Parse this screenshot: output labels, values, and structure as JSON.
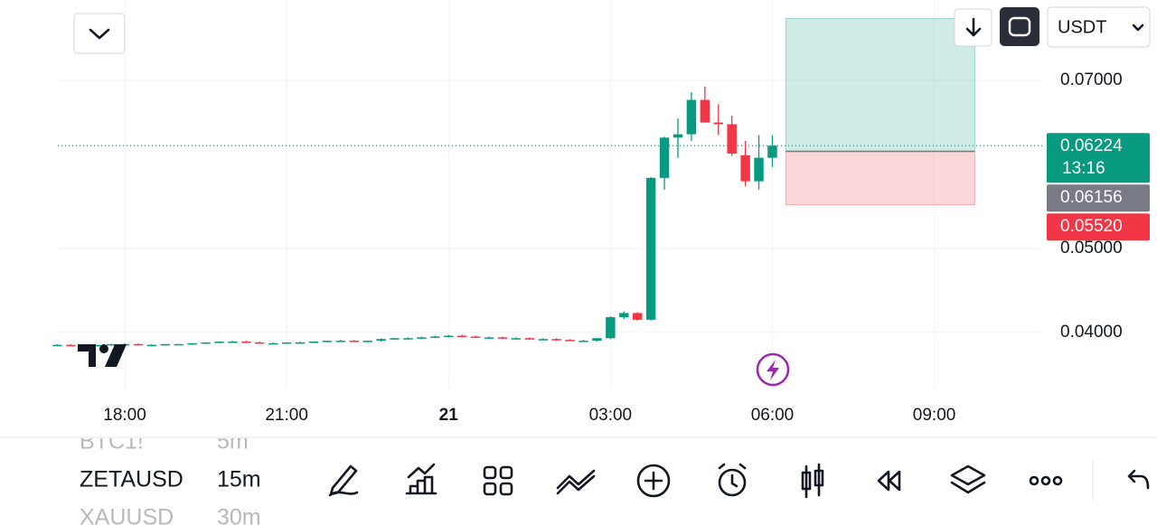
{
  "chart_data": {
    "type": "candlestick",
    "x": [
      16.75,
      17,
      17.25,
      17.5,
      17.75,
      18,
      18.25,
      18.5,
      18.75,
      19,
      19.25,
      19.5,
      19.75,
      20,
      20.25,
      20.5,
      20.75,
      21,
      21.25,
      21.5,
      21.75,
      22,
      22.25,
      22.5,
      22.75,
      23,
      23.25,
      23.5,
      23.75,
      24,
      24.25,
      24.5,
      24.75,
      25,
      25.25,
      25.5,
      25.75,
      26,
      26.25,
      26.5,
      26.75,
      27,
      27.25,
      27.5,
      27.75,
      28,
      28.25,
      28.5,
      28.75,
      29,
      29.25,
      29.5,
      29.75,
      30
    ],
    "open": [
      0.0385,
      0.0385,
      0.0384,
      0.0384,
      0.0385,
      0.0386,
      0.0386,
      0.0385,
      0.0385,
      0.0386,
      0.0386,
      0.0387,
      0.0388,
      0.0389,
      0.0389,
      0.0388,
      0.0387,
      0.0387,
      0.0388,
      0.0388,
      0.0389,
      0.039,
      0.039,
      0.0389,
      0.039,
      0.0392,
      0.0393,
      0.0393,
      0.0394,
      0.0395,
      0.0396,
      0.0395,
      0.0394,
      0.0394,
      0.0393,
      0.0393,
      0.0392,
      0.0392,
      0.0391,
      0.039,
      0.039,
      0.0393,
      0.0418,
      0.0423,
      0.0415,
      0.0584,
      0.0632,
      0.0636,
      0.0677,
      0.065,
      0.0648,
      0.0611,
      0.058,
      0.0608
    ],
    "high": [
      0.0386,
      0.0386,
      0.0385,
      0.0385,
      0.0386,
      0.0387,
      0.0387,
      0.0386,
      0.0386,
      0.0386,
      0.0387,
      0.0388,
      0.0389,
      0.039,
      0.039,
      0.0389,
      0.0388,
      0.0388,
      0.0389,
      0.0389,
      0.039,
      0.0391,
      0.0391,
      0.039,
      0.0393,
      0.0393,
      0.0394,
      0.0395,
      0.0396,
      0.0397,
      0.0397,
      0.0396,
      0.0395,
      0.0395,
      0.0394,
      0.0394,
      0.0393,
      0.0393,
      0.0392,
      0.0391,
      0.0393,
      0.0419,
      0.0425,
      0.0424,
      0.0585,
      0.0633,
      0.0655,
      0.0686,
      0.0693,
      0.0672,
      0.0658,
      0.0628,
      0.0635,
      0.0635
    ],
    "low": [
      0.0384,
      0.0384,
      0.0383,
      0.0383,
      0.0384,
      0.0385,
      0.0385,
      0.0384,
      0.0384,
      0.0385,
      0.0385,
      0.0386,
      0.0387,
      0.0388,
      0.0388,
      0.0387,
      0.0386,
      0.0386,
      0.0387,
      0.0387,
      0.0388,
      0.0389,
      0.0389,
      0.0388,
      0.0389,
      0.0391,
      0.0392,
      0.0392,
      0.0393,
      0.0394,
      0.0394,
      0.0394,
      0.0393,
      0.0392,
      0.0392,
      0.0391,
      0.0391,
      0.039,
      0.039,
      0.0389,
      0.0389,
      0.0392,
      0.0416,
      0.0414,
      0.0414,
      0.057,
      0.0608,
      0.0628,
      0.065,
      0.0635,
      0.061,
      0.0574,
      0.057,
      0.0597
    ],
    "close": [
      0.0385,
      0.0384,
      0.0384,
      0.0385,
      0.0386,
      0.0386,
      0.0385,
      0.0385,
      0.0386,
      0.0386,
      0.0387,
      0.0388,
      0.0389,
      0.0389,
      0.0388,
      0.0387,
      0.0387,
      0.0388,
      0.0388,
      0.0389,
      0.039,
      0.039,
      0.0389,
      0.039,
      0.0392,
      0.0393,
      0.0393,
      0.0394,
      0.0395,
      0.0396,
      0.0395,
      0.0394,
      0.0394,
      0.0393,
      0.0393,
      0.0392,
      0.0392,
      0.0391,
      0.039,
      0.039,
      0.0393,
      0.0418,
      0.0423,
      0.0415,
      0.0584,
      0.0632,
      0.0636,
      0.0677,
      0.065,
      0.0648,
      0.0613,
      0.058,
      0.0608,
      0.06224
    ],
    "up_color": "#089981",
    "down_color": "#f23645",
    "xlim": [
      16.76,
      34.95
    ],
    "xticks": [
      {
        "value": 18,
        "label": "18:00"
      },
      {
        "value": 21,
        "label": "21:00"
      },
      {
        "value": 24,
        "label": "21"
      },
      {
        "value": 27,
        "label": "03:00"
      },
      {
        "value": 30,
        "label": "06:00"
      },
      {
        "value": 33,
        "label": "09:00"
      }
    ],
    "ylim": [
      0.0333,
      0.0796
    ],
    "yticks": [
      {
        "value": 0.04,
        "label": "0.04000"
      },
      {
        "value": 0.05,
        "label": "0.05000"
      },
      {
        "value": 0.07,
        "label": "0.07000"
      }
    ],
    "grid": true,
    "last_price": 0.06224,
    "countdown": "13:16",
    "position": {
      "start": 30.25,
      "end": 33.75,
      "entry": 0.06156,
      "stop": {
        "value": 0.0552,
        "label": "0.05520"
      },
      "target": 0.0774
    }
  },
  "header": {
    "currency": "USDT"
  },
  "intervals": [
    {
      "symbol": "BTC1!",
      "interval": "5m"
    },
    {
      "symbol": "ZETAUSD",
      "interval": "15m"
    },
    {
      "symbol": "XAUUSD",
      "interval": "30m"
    }
  ]
}
